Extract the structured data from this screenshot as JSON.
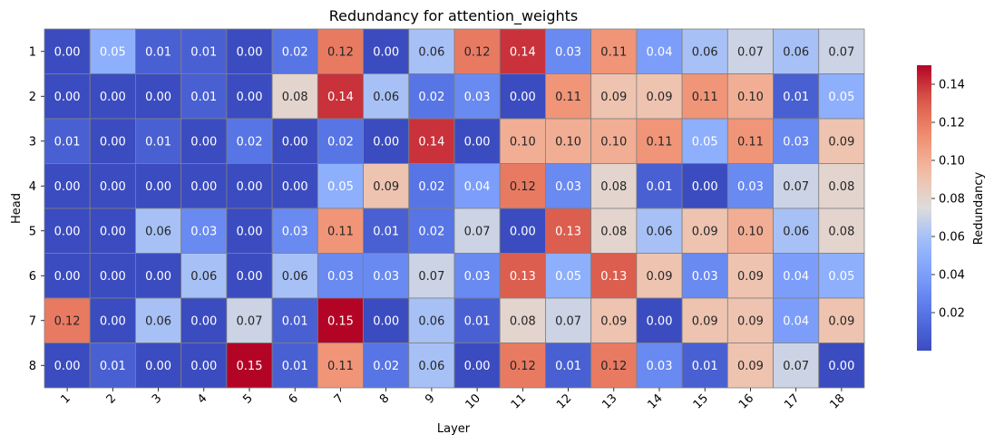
{
  "chart_data": {
    "type": "heatmap",
    "title": "Redundancy for attention_weights",
    "xlabel": "Layer",
    "ylabel": "Head",
    "x_categories": [
      "1",
      "2",
      "3",
      "4",
      "5",
      "6",
      "7",
      "8",
      "9",
      "10",
      "11",
      "12",
      "13",
      "14",
      "15",
      "16",
      "17",
      "18"
    ],
    "y_categories": [
      "1",
      "2",
      "3",
      "4",
      "5",
      "6",
      "7",
      "8"
    ],
    "values": [
      [
        0.0,
        0.05,
        0.01,
        0.01,
        0.0,
        0.02,
        0.12,
        0.0,
        0.06,
        0.12,
        0.14,
        0.03,
        0.11,
        0.04,
        0.06,
        0.07,
        0.06,
        0.07
      ],
      [
        0.0,
        0.0,
        0.0,
        0.01,
        0.0,
        0.08,
        0.14,
        0.06,
        0.02,
        0.03,
        0.0,
        0.11,
        0.09,
        0.09,
        0.11,
        0.1,
        0.01,
        0.05
      ],
      [
        0.01,
        0.0,
        0.01,
        0.0,
        0.02,
        0.0,
        0.02,
        0.0,
        0.14,
        0.0,
        0.1,
        0.1,
        0.1,
        0.11,
        0.05,
        0.11,
        0.03,
        0.09
      ],
      [
        0.0,
        0.0,
        0.0,
        0.0,
        0.0,
        0.0,
        0.05,
        0.09,
        0.02,
        0.04,
        0.12,
        0.03,
        0.08,
        0.01,
        0.0,
        0.03,
        0.07,
        0.08
      ],
      [
        0.0,
        0.0,
        0.06,
        0.03,
        0.0,
        0.03,
        0.11,
        0.01,
        0.02,
        0.07,
        0.0,
        0.13,
        0.08,
        0.06,
        0.09,
        0.1,
        0.06,
        0.08
      ],
      [
        0.0,
        0.0,
        0.0,
        0.06,
        0.0,
        0.06,
        0.03,
        0.03,
        0.07,
        0.03,
        0.13,
        0.05,
        0.13,
        0.09,
        0.03,
        0.09,
        0.04,
        0.05
      ],
      [
        0.12,
        0.0,
        0.06,
        0.0,
        0.07,
        0.01,
        0.15,
        0.0,
        0.06,
        0.01,
        0.08,
        0.07,
        0.09,
        0.0,
        0.09,
        0.09,
        0.04,
        0.09
      ],
      [
        0.0,
        0.01,
        0.0,
        0.0,
        0.15,
        0.01,
        0.11,
        0.02,
        0.06,
        0.0,
        0.12,
        0.01,
        0.12,
        0.03,
        0.01,
        0.09,
        0.07,
        0.0
      ]
    ],
    "value_format": "0.00",
    "colormap": "coolwarm",
    "color_range": [
      0.0,
      0.15
    ],
    "colorbar": {
      "label": "Redundancy",
      "ticks": [
        "0.02",
        "0.04",
        "0.06",
        "0.08",
        "0.10",
        "0.12",
        "0.14"
      ],
      "tick_values": [
        0.02,
        0.04,
        0.06,
        0.08,
        0.1,
        0.12,
        0.14
      ],
      "placement": "right"
    },
    "cell_border_color": "#808080"
  }
}
